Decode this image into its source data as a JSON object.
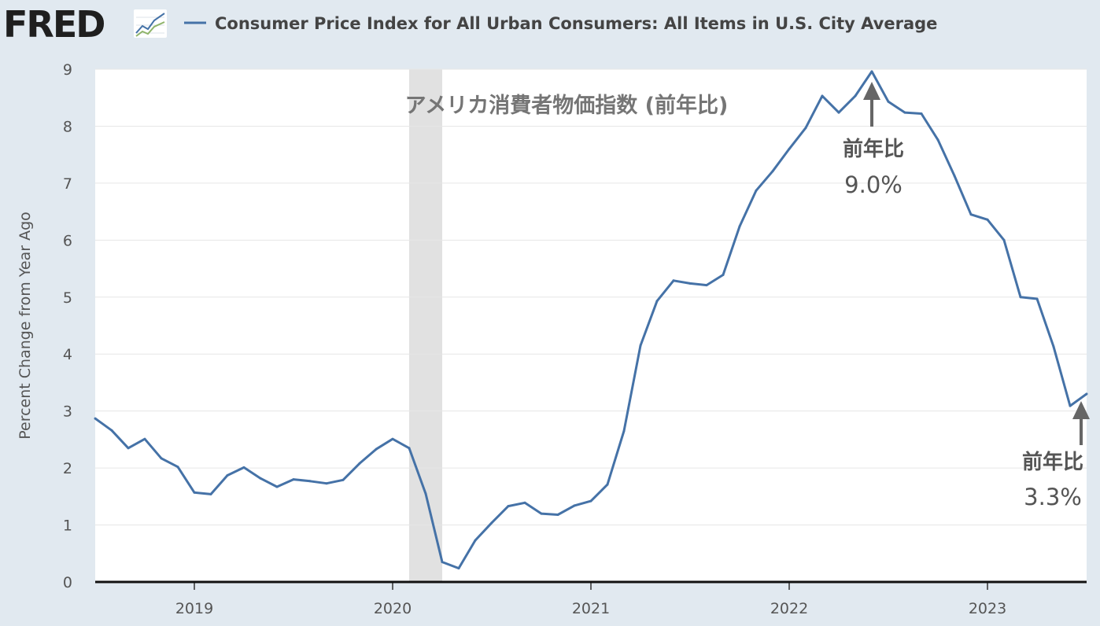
{
  "header": {
    "logo_text": "FRED",
    "logo_icon": "fred-line-chart-icon",
    "legend_label": "Consumer Price Index for All Urban Consumers: All Items in U.S. City Average"
  },
  "colors": {
    "background": "#e1e9f0",
    "plot_background": "#ffffff",
    "series": "#4572a7",
    "recession": "#e1e1e1",
    "annotation": "#555555",
    "logo_text": "#1f1f1f"
  },
  "chart_data": {
    "type": "line",
    "title": "",
    "ylabel": "Percent Change from Year Ago",
    "xlabel": "",
    "ylim": [
      0,
      9
    ],
    "yticks": [
      0,
      1,
      2,
      3,
      4,
      5,
      6,
      7,
      8,
      9
    ],
    "xticks": [
      "2019",
      "2020",
      "2021",
      "2022",
      "2023"
    ],
    "x_range": [
      "2018-07",
      "2023-07"
    ],
    "grid": true,
    "recession": {
      "start": "2020-02",
      "end": "2020-04"
    },
    "overlay_title": "アメリカ消費者物価指数 (前年比)",
    "annotations": [
      {
        "label": "前年比",
        "value_text": "9.0%",
        "x": "2022-06",
        "y": 9.0
      },
      {
        "label": "前年比",
        "value_text": "3.3%",
        "x": "2023-07",
        "y": 3.3
      }
    ],
    "series": [
      {
        "name": "Consumer Price Index for All Urban Consumers: All Items in U.S. City Average",
        "x": [
          "2018-07",
          "2018-08",
          "2018-09",
          "2018-10",
          "2018-11",
          "2018-12",
          "2019-01",
          "2019-02",
          "2019-03",
          "2019-04",
          "2019-05",
          "2019-06",
          "2019-07",
          "2019-08",
          "2019-09",
          "2019-10",
          "2019-11",
          "2019-12",
          "2020-01",
          "2020-02",
          "2020-03",
          "2020-04",
          "2020-05",
          "2020-06",
          "2020-07",
          "2020-08",
          "2020-09",
          "2020-10",
          "2020-11",
          "2020-12",
          "2021-01",
          "2021-02",
          "2021-03",
          "2021-04",
          "2021-05",
          "2021-06",
          "2021-07",
          "2021-08",
          "2021-09",
          "2021-10",
          "2021-11",
          "2021-12",
          "2022-01",
          "2022-02",
          "2022-03",
          "2022-04",
          "2022-05",
          "2022-06",
          "2022-07",
          "2022-08",
          "2022-09",
          "2022-10",
          "2022-11",
          "2022-12",
          "2023-01",
          "2023-02",
          "2023-03",
          "2023-04",
          "2023-05",
          "2023-06",
          "2023-07"
        ],
        "values": [
          2.87,
          2.66,
          2.35,
          2.51,
          2.17,
          2.02,
          1.57,
          1.54,
          1.87,
          2.01,
          1.82,
          1.67,
          1.8,
          1.77,
          1.73,
          1.79,
          2.08,
          2.33,
          2.51,
          2.35,
          1.55,
          0.35,
          0.24,
          0.73,
          1.04,
          1.33,
          1.39,
          1.2,
          1.18,
          1.34,
          1.42,
          1.71,
          2.65,
          4.15,
          4.93,
          5.29,
          5.24,
          5.21,
          5.39,
          6.24,
          6.87,
          7.21,
          7.6,
          7.97,
          8.53,
          8.24,
          8.53,
          8.96,
          8.43,
          8.24,
          8.22,
          7.76,
          7.13,
          6.45,
          6.36,
          6.0,
          5.0,
          4.97,
          4.13,
          3.09,
          3.3
        ]
      }
    ]
  }
}
